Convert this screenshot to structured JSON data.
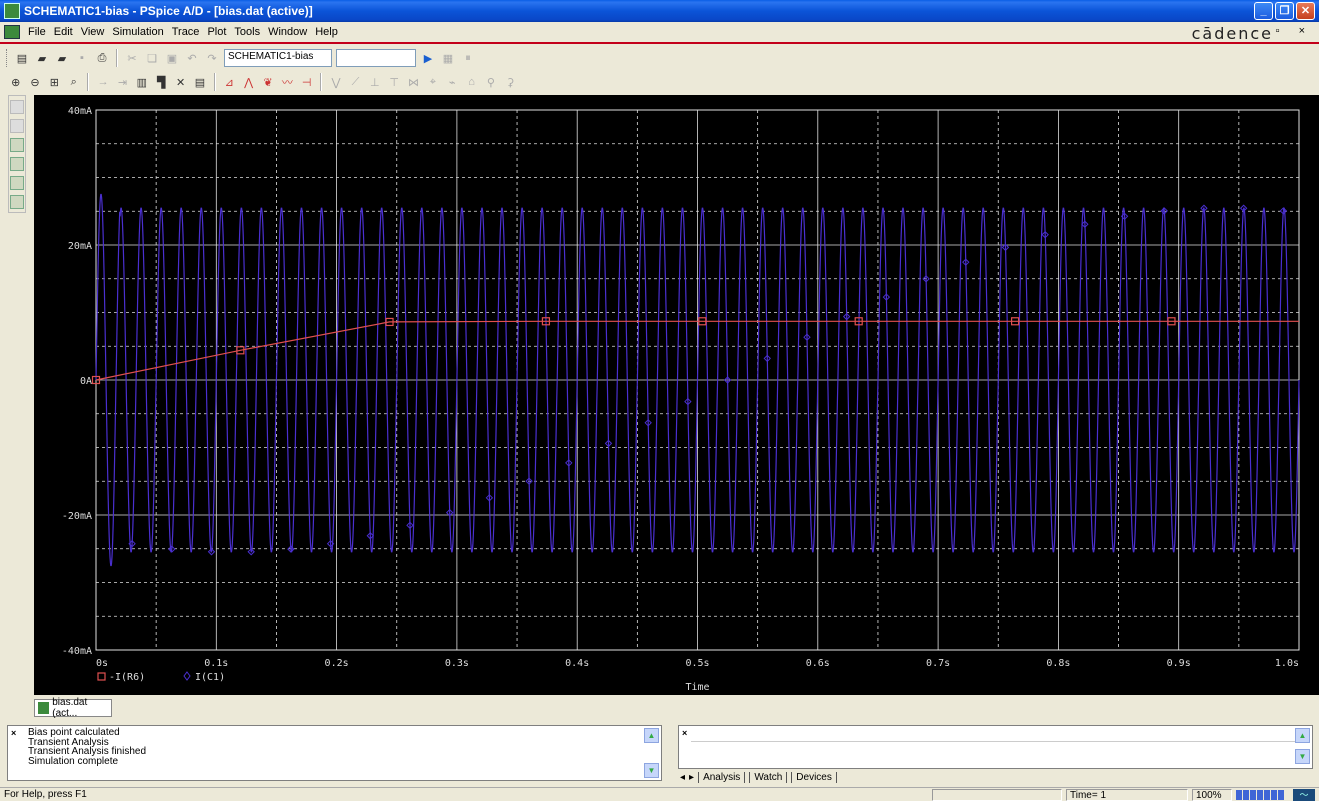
{
  "window": {
    "title": "SCHEMATIC1-bias - PSpice A/D  - [bias.dat (active)]",
    "minimize": "_",
    "maximize": "❐",
    "close": "✕"
  },
  "menu": {
    "items": [
      "File",
      "Edit",
      "View",
      "Simulation",
      "Trace",
      "Plot",
      "Tools",
      "Window",
      "Help"
    ],
    "brand": "cādence",
    "mdi_controls": "- ▫ ×"
  },
  "toolbar": {
    "profile_combo": "SCHEMATIC1-bias",
    "second_combo": ""
  },
  "plot": {
    "y_ticks": [
      "40mA",
      "20mA",
      "0A",
      "-20mA",
      "-40mA"
    ],
    "x_ticks": [
      "0s",
      "0.1s",
      "0.2s",
      "0.3s",
      "0.4s",
      "0.5s",
      "0.6s",
      "0.7s",
      "0.8s",
      "0.9s",
      "1.0s"
    ],
    "x_title": "Time",
    "legend": [
      {
        "label": "-I(R6)",
        "color": "#e05050"
      },
      {
        "label": "I(C1)",
        "color": "#4a2fd0"
      }
    ],
    "background": "#000000",
    "grid_color": "#e0e0e0"
  },
  "chart_data": {
    "type": "line",
    "xlabel": "Time",
    "ylabel": "",
    "xlim": [
      0,
      1.0
    ],
    "ylim": [
      -40,
      40
    ],
    "y_units": "mA",
    "grid": true,
    "legend_position": "bottom-left",
    "series": [
      {
        "name": "-I(R6)",
        "color": "#e05050",
        "marker": "square",
        "x": [
          0.0,
          0.12,
          0.244,
          0.374,
          0.504,
          0.634,
          0.764,
          0.894,
          1.0
        ],
        "values": [
          0.0,
          4.4,
          8.6,
          8.7,
          8.7,
          8.7,
          8.7,
          8.7,
          8.7
        ]
      },
      {
        "name": "I(C1)",
        "color": "#4a2fd0",
        "marker": "diamond",
        "shape": "sine",
        "amplitude_mA": 25.5,
        "offset_mA": 0,
        "cycles": 60,
        "x_range": [
          0,
          1.0
        ]
      }
    ]
  },
  "doc_tab": {
    "label": "bias.dat (act..."
  },
  "output": {
    "lines": [
      "Bias point calculated",
      "Transient Analysis",
      "Transient Analysis finished",
      "Simulation complete"
    ]
  },
  "watch": {
    "tabs": [
      "Analysis",
      "Watch",
      "Devices"
    ]
  },
  "status": {
    "help": "For Help, press F1",
    "time": "Time= 1",
    "zoom": "100%"
  }
}
